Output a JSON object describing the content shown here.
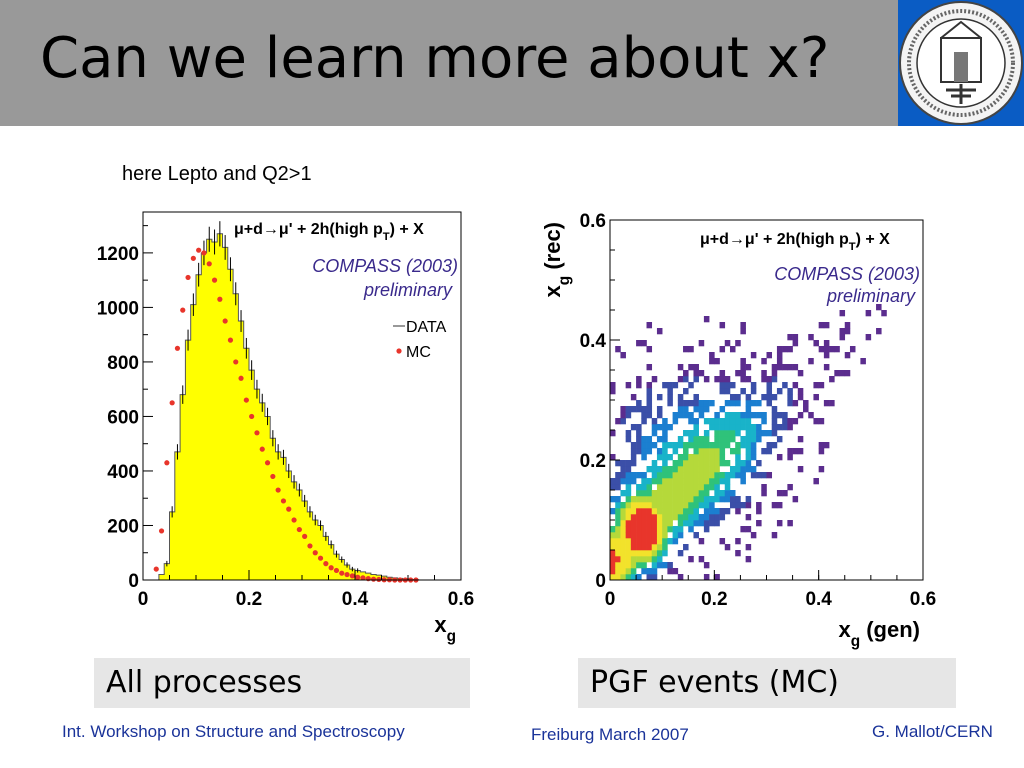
{
  "slide": {
    "title": "Can we learn more about x?",
    "subtitle": "here Lepto and Q2>1",
    "caption_left": "All processes",
    "caption_right": "PGF events (MC)",
    "footer_left": "Int. Workshop on Structure and Spectroscopy",
    "footer_center": "Freiburg March 2007",
    "footer_right": "G. Mallot/CERN",
    "colors": {
      "header_bg": "#999999",
      "footer_text": "#1a3399",
      "caption_bg": "#e6e6e6",
      "histogram_fill": "#ffff00",
      "mc_marker": "#e8352b",
      "label_purple": "#3a2a8c"
    },
    "logo": "university-seal-icon"
  },
  "chart_data": [
    {
      "type": "bar",
      "reaction": "μ+d→μ' + 2h(high p",
      "reaction_sub": "T",
      "reaction_tail": ") + X",
      "experiment": "COMPASS (2003)",
      "status": "preliminary",
      "xlabel": "x",
      "xlabel_sub": "g",
      "ylabel": "",
      "xlim": [
        0,
        0.6
      ],
      "ylim": [
        0,
        1350
      ],
      "xticks": [
        "0",
        "0.2",
        "0.4",
        "0.6"
      ],
      "yticks": [
        "0",
        "200",
        "400",
        "600",
        "800",
        "1000",
        "1200"
      ],
      "legend": [
        {
          "name": "DATA",
          "style": "line"
        },
        {
          "name": "MC",
          "style": "dot"
        }
      ],
      "bin_width": 0.01,
      "x": [
        0.025,
        0.035,
        0.045,
        0.055,
        0.065,
        0.075,
        0.085,
        0.095,
        0.105,
        0.115,
        0.125,
        0.135,
        0.145,
        0.155,
        0.165,
        0.175,
        0.185,
        0.195,
        0.205,
        0.215,
        0.225,
        0.235,
        0.245,
        0.255,
        0.265,
        0.275,
        0.285,
        0.295,
        0.305,
        0.315,
        0.325,
        0.335,
        0.345,
        0.355,
        0.365,
        0.375,
        0.385,
        0.395,
        0.405,
        0.415,
        0.425,
        0.435,
        0.445,
        0.455,
        0.465,
        0.475,
        0.485,
        0.495,
        0.505,
        0.515,
        0.525,
        0.535
      ],
      "data": [
        0,
        20,
        60,
        250,
        470,
        680,
        880,
        1010,
        1120,
        1200,
        1250,
        1240,
        1270,
        1220,
        1140,
        1050,
        950,
        850,
        770,
        700,
        650,
        600,
        520,
        470,
        450,
        400,
        360,
        330,
        290,
        250,
        220,
        200,
        160,
        130,
        95,
        75,
        55,
        40,
        35,
        30,
        25,
        20,
        18,
        14,
        10,
        8,
        6,
        4,
        2,
        1,
        0,
        0
      ],
      "mc": [
        40,
        180,
        430,
        650,
        850,
        990,
        1110,
        1180,
        1210,
        1200,
        1160,
        1100,
        1030,
        950,
        880,
        800,
        740,
        660,
        600,
        540,
        480,
        430,
        380,
        330,
        290,
        260,
        220,
        185,
        160,
        125,
        100,
        80,
        60,
        45,
        35,
        25,
        20,
        15,
        10,
        8,
        5,
        3,
        2,
        1,
        1,
        0,
        0,
        0,
        0,
        0,
        0,
        0
      ]
    },
    {
      "type": "heatmap",
      "reaction": "μ+d→μ' + 2h(high p",
      "reaction_sub": "T",
      "reaction_tail": ") + X",
      "experiment": "COMPASS (2003)",
      "status": "preliminary",
      "xlabel": "x",
      "xlabel_sub": "g",
      "xlabel_tail": " (gen)",
      "ylabel": "x",
      "ylabel_sub": "g",
      "ylabel_tail": " (rec)",
      "xlim": [
        0,
        0.6
      ],
      "ylim": [
        0,
        0.6
      ],
      "xticks": [
        "0",
        "0.2",
        "0.4",
        "0.6"
      ],
      "yticks": [
        "0",
        "0.2",
        "0.4",
        "0.6"
      ],
      "palette": [
        "#5b2d8e",
        "#3b4fa8",
        "#1b7fd0",
        "#19b3c9",
        "#2fc27a",
        "#b5d93a",
        "#f2e22b",
        "#e8352b"
      ]
    }
  ]
}
